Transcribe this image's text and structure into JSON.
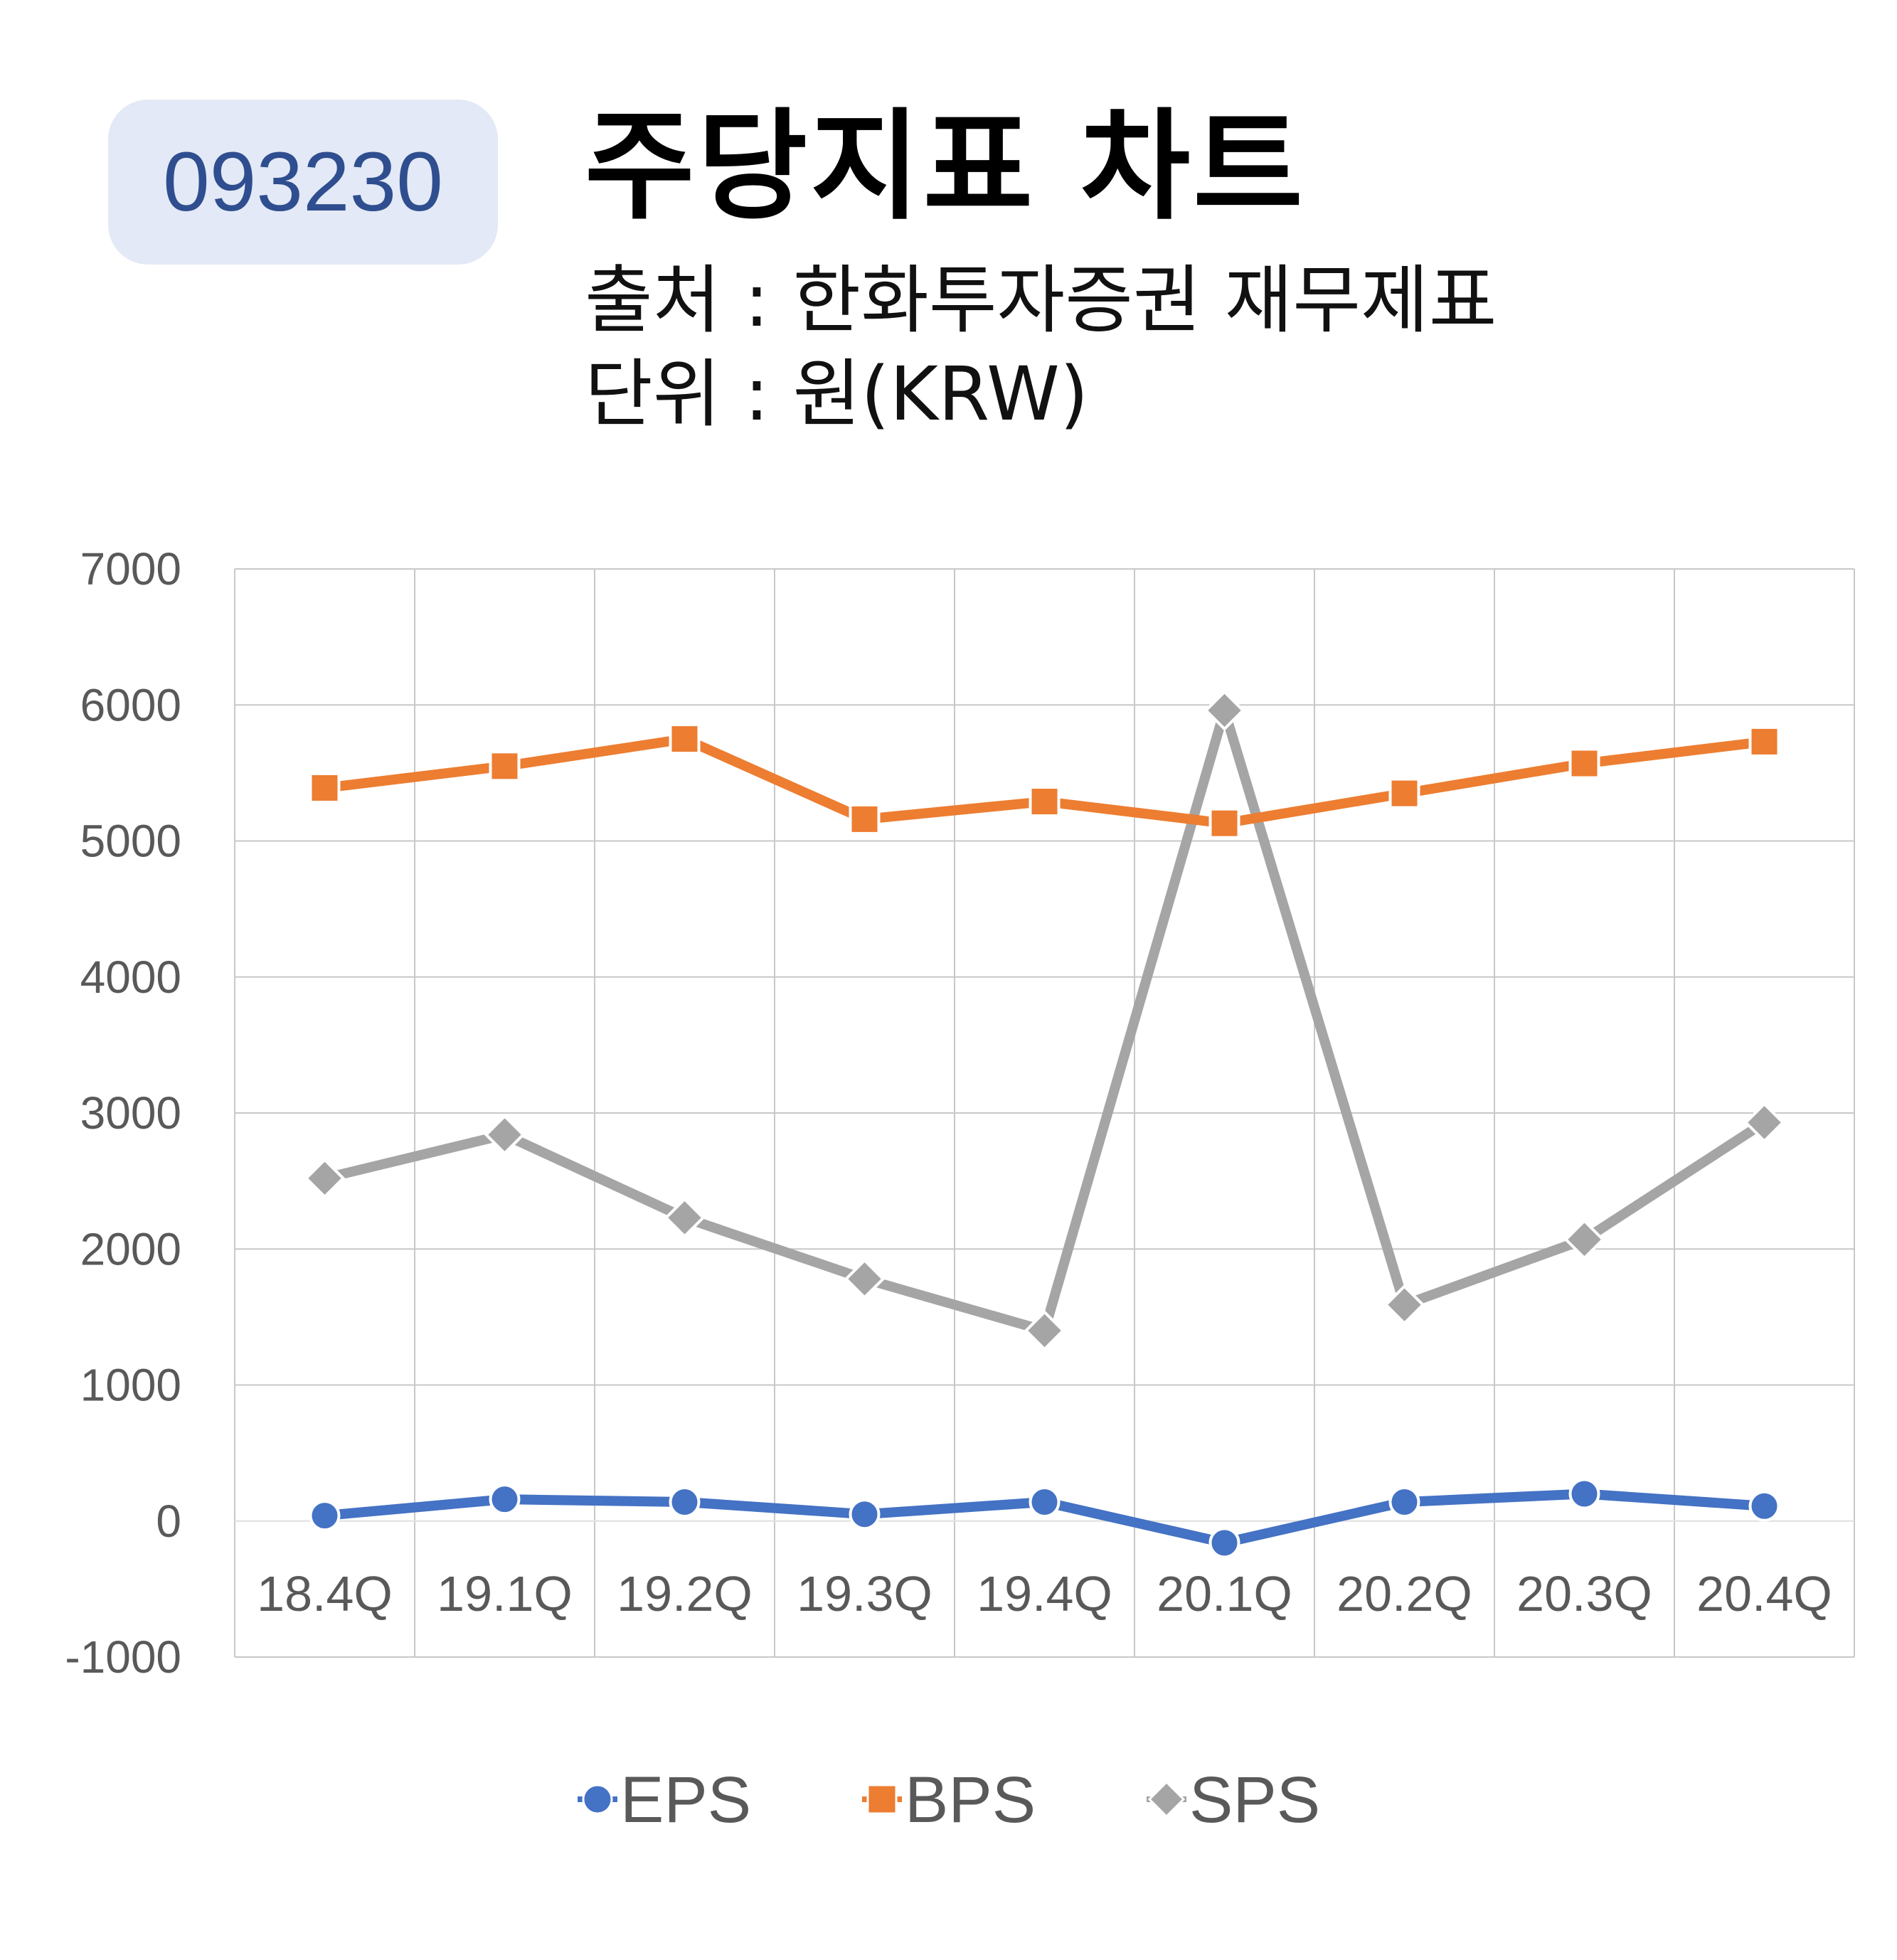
{
  "header": {
    "ticker": "093230",
    "title": "주당지표 차트",
    "source": "출처 : 한화투자증권 재무제표",
    "unit": "단위 : 원(KRW)"
  },
  "chart_data": {
    "type": "line",
    "title": "주당지표 차트",
    "categories": [
      "18.4Q",
      "19.1Q",
      "19.2Q",
      "19.3Q",
      "19.4Q",
      "20.1Q",
      "20.2Q",
      "20.3Q",
      "20.4Q"
    ],
    "ylim": [
      -1000,
      7000
    ],
    "yticks": [
      -1000,
      0,
      1000,
      2000,
      3000,
      4000,
      5000,
      6000,
      7000
    ],
    "grid": true,
    "legend_position": "bottom",
    "series": [
      {
        "name": "EPS",
        "color": "#4472c4",
        "marker": "circle",
        "values": [
          40,
          160,
          140,
          50,
          140,
          -160,
          140,
          200,
          110
        ]
      },
      {
        "name": "BPS",
        "color": "#ed7d31",
        "marker": "square",
        "values": [
          5390,
          5550,
          5750,
          5160,
          5290,
          5130,
          5350,
          5570,
          5730
        ]
      },
      {
        "name": "SPS",
        "color": "#a5a5a5",
        "marker": "diamond",
        "values": [
          2520,
          2840,
          2230,
          1780,
          1400,
          5960,
          1590,
          2070,
          2930
        ]
      }
    ]
  }
}
